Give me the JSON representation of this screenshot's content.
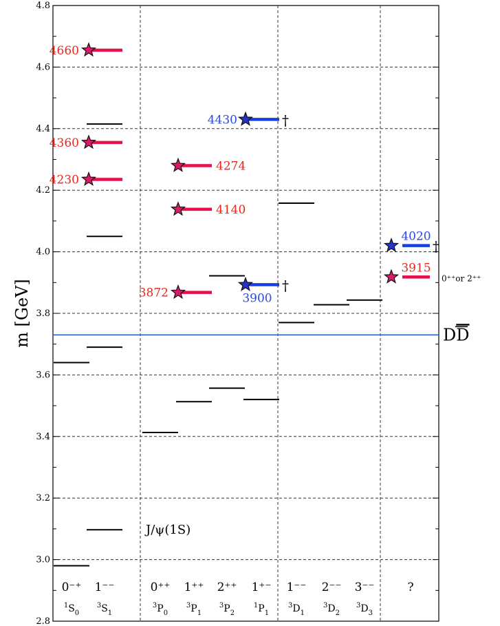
{
  "y_axis": {
    "label": "m [GeV]",
    "min": 2.8,
    "max": 4.8,
    "ticks": [
      "2.8",
      "3.0",
      "3.2",
      "3.4",
      "3.6",
      "3.8",
      "4.0",
      "4.2",
      "4.4",
      "4.6",
      "4.8"
    ],
    "minor_step": 0.1
  },
  "columns": [
    {
      "jpc": "0⁻⁺",
      "term": {
        "sup": "1",
        "base": "S",
        "sub": "0"
      }
    },
    {
      "jpc": "1⁻⁻",
      "term": {
        "sup": "3",
        "base": "S",
        "sub": "1"
      }
    },
    {
      "jpc": "0⁺⁺",
      "term": {
        "sup": "3",
        "base": "P",
        "sub": "0"
      }
    },
    {
      "jpc": "1⁺⁺",
      "term": {
        "sup": "3",
        "base": "P",
        "sub": "1"
      }
    },
    {
      "jpc": "2⁺⁺",
      "term": {
        "sup": "3",
        "base": "P",
        "sub": "2"
      }
    },
    {
      "jpc": "1⁺⁻",
      "term": {
        "sup": "1",
        "base": "P",
        "sub": "1"
      }
    },
    {
      "jpc": "1⁻⁻",
      "term": {
        "sup": "3",
        "base": "D",
        "sub": "1"
      }
    },
    {
      "jpc": "2⁻⁻",
      "term": {
        "sup": "3",
        "base": "D",
        "sub": "2"
      }
    },
    {
      "jpc": "3⁻⁻",
      "term": {
        "sup": "3",
        "base": "D",
        "sub": "3"
      }
    },
    {
      "jpc": "?",
      "term": null
    }
  ],
  "predicted_levels": [
    {
      "col": 0,
      "m": 2.98
    },
    {
      "col": 0,
      "m": 3.64
    },
    {
      "col": 1,
      "m": 3.097
    },
    {
      "col": 1,
      "m": 3.69
    },
    {
      "col": 1,
      "m": 4.05
    },
    {
      "col": 1,
      "m": 4.415
    },
    {
      "col": 2,
      "m": 3.413
    },
    {
      "col": 3,
      "m": 3.513
    },
    {
      "col": 4,
      "m": 3.557
    },
    {
      "col": 4,
      "m": 3.922
    },
    {
      "col": 5,
      "m": 3.52
    },
    {
      "col": 6,
      "m": 3.77
    },
    {
      "col": 6,
      "m": 4.158
    },
    {
      "col": 7,
      "m": 3.828
    },
    {
      "col": 8,
      "m": 3.843
    }
  ],
  "xyz_states": [
    {
      "label": "4660",
      "m": 4.655,
      "col": 1,
      "color": "red"
    },
    {
      "label": "4360",
      "m": 4.355,
      "col": 1,
      "color": "red"
    },
    {
      "label": "4230",
      "m": 4.235,
      "col": 1,
      "color": "red"
    },
    {
      "label": "4274",
      "m": 4.28,
      "col": 3,
      "color": "red"
    },
    {
      "label": "4140",
      "m": 4.138,
      "col": 3,
      "color": "red"
    },
    {
      "label": "3872",
      "m": 3.868,
      "col": 3,
      "color": "red"
    },
    {
      "label": "4430",
      "m": 4.43,
      "col": 5,
      "color": "blue",
      "dagger": "†"
    },
    {
      "label": "3900",
      "m": 3.893,
      "col": 5,
      "color": "blue",
      "dagger": "†"
    },
    {
      "label": "4020",
      "m": 4.02,
      "col": 9,
      "color": "blue",
      "dagger": "†"
    },
    {
      "label": "3915",
      "m": 3.918,
      "col": 9,
      "color": "red",
      "note": "0⁺⁺or 2⁺⁺"
    }
  ],
  "threshold": {
    "label": "DD̅",
    "base": "D",
    "bar": "D",
    "m": 3.73
  },
  "jpsi_label": "J/ψ(1S)",
  "colors": {
    "red": "#e8104a",
    "red_text": "#e8281f",
    "blue": "#1a3fe0",
    "blue_text": "#2a49e6",
    "threshold": "#2a5fd8",
    "star_red_fill": "#d81c6a",
    "star_blue_fill": "#2832c8"
  }
}
